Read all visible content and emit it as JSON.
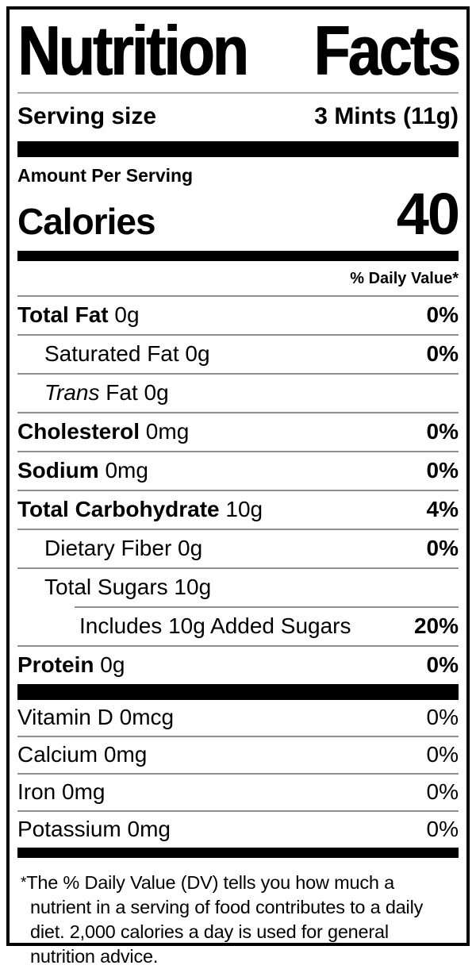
{
  "title": "Nutrition Facts",
  "serving": {
    "label": "Serving size",
    "value": "3 Mints (11g)"
  },
  "calories": {
    "header": "Amount Per Serving",
    "label": "Calories",
    "value": "40"
  },
  "daily_value_header": "% Daily Value*",
  "main_rows": [
    {
      "bold": "Total Fat",
      "text": " 0g",
      "dv": "0%",
      "dv_bold": true,
      "indent": 0
    },
    {
      "text": "Saturated Fat 0g",
      "dv": "0%",
      "dv_bold": true,
      "indent": 1
    },
    {
      "italic": "Trans",
      "text": " Fat 0g",
      "dv": "",
      "dv_bold": false,
      "indent": 1
    },
    {
      "bold": "Cholesterol",
      "text": " 0mg",
      "dv": "0%",
      "dv_bold": true,
      "indent": 0
    },
    {
      "bold": "Sodium",
      "text": " 0mg",
      "dv": "0%",
      "dv_bold": true,
      "indent": 0
    },
    {
      "bold": "Total Carbohydrate",
      "text": " 10g",
      "dv": "4%",
      "dv_bold": true,
      "indent": 0
    },
    {
      "text": "Dietary Fiber 0g",
      "dv": "0%",
      "dv_bold": true,
      "indent": 1
    },
    {
      "text": "Total Sugars 10g",
      "dv": "",
      "dv_bold": false,
      "indent": 1
    },
    {
      "text": "Includes 10g Added Sugars",
      "dv": "20%",
      "dv_bold": true,
      "indent": 2,
      "sub_divider": true
    },
    {
      "bold": "Protein",
      "text": " 0g",
      "dv": "0%",
      "dv_bold": true,
      "indent": 0
    }
  ],
  "vitamin_rows": [
    {
      "text": "Vitamin D 0mcg",
      "dv": "0%"
    },
    {
      "text": "Calcium 0mg",
      "dv": "0%"
    },
    {
      "text": "Iron 0mg",
      "dv": "0%"
    },
    {
      "text": "Potassium 0mg",
      "dv": "0%"
    }
  ],
  "footnote": {
    "asterisk": "*",
    "text": "The % Daily Value (DV) tells you how much a nutrient in a serving of food contributes to a daily diet. 2,000 calories a day is used for general nutrition advice."
  },
  "colors": {
    "ink": "#000000",
    "divider": "#8f8f8f"
  }
}
